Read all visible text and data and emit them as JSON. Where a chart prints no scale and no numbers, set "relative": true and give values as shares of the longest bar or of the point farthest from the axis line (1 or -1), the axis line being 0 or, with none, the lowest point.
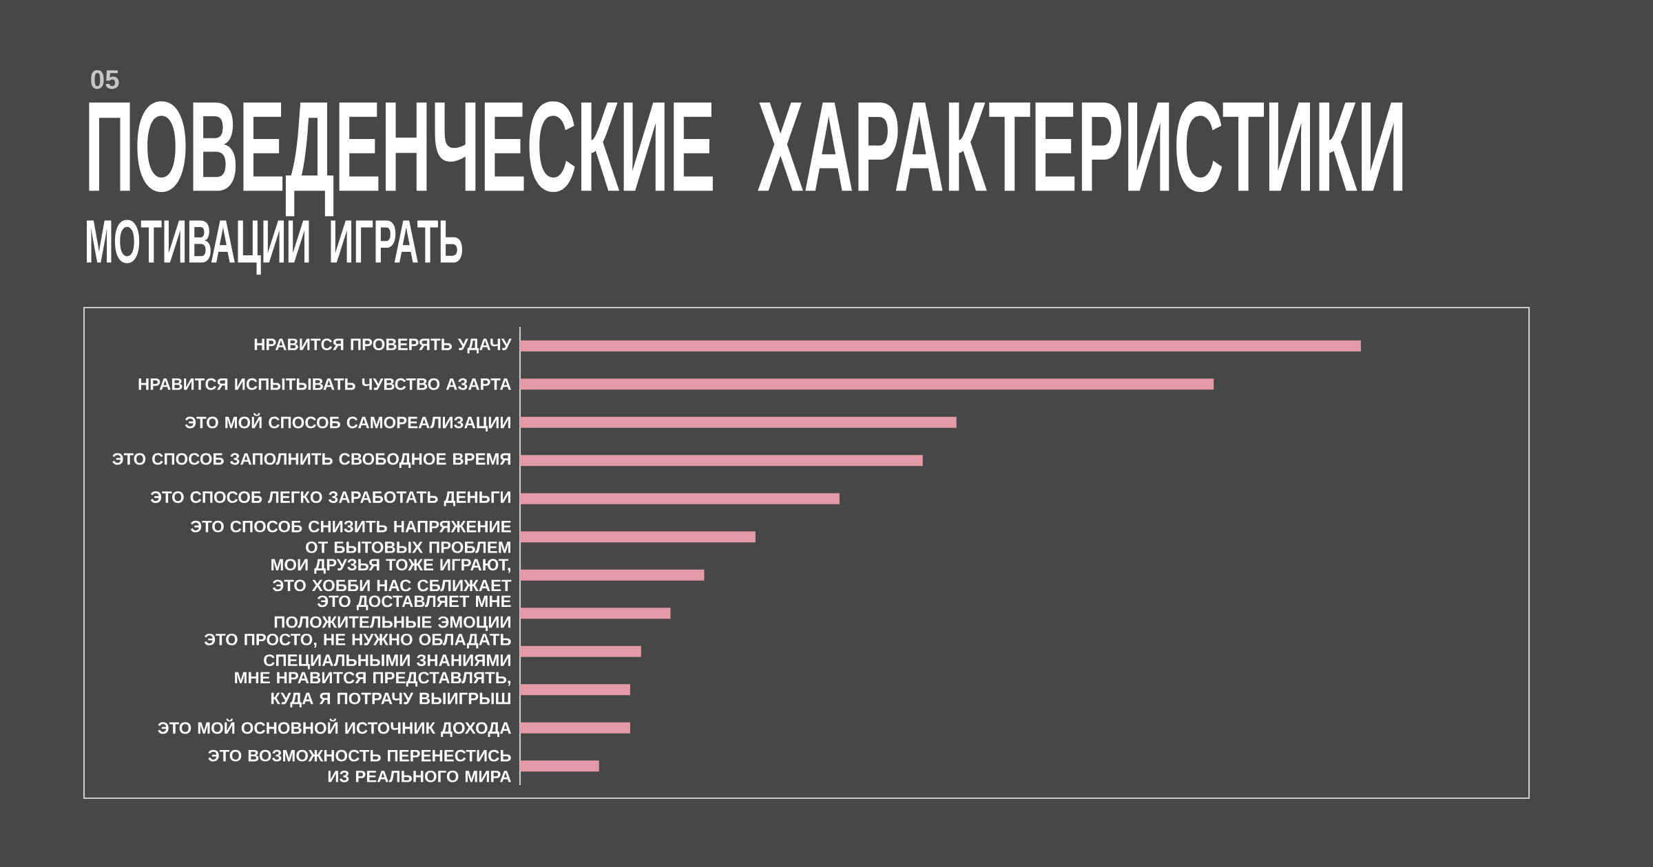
{
  "chart_data": {
    "type": "bar",
    "orientation": "horizontal",
    "relative": true,
    "title": "ПОВЕДЕНЧЕСКИЕ ХАРАКТЕРИСТИКИ",
    "subtitle": "МОТИВАЦИИ ИГРАТЬ",
    "annotations": [
      "05"
    ],
    "categories": [
      "НРАВИТСЯ ПРОВЕРЯТЬ УДАЧУ",
      "НРАВИТСЯ ИСПЫТЫВАТЬ ЧУВСТВО АЗАРТА",
      "ЭТО МОЙ СПОСОБ САМОРЕАЛИЗАЦИИ",
      "ЭТО СПОСОБ ЗАПОЛНИТЬ СВОБОДНОЕ ВРЕМЯ",
      "ЭТО СПОСОБ ЛЕГКО ЗАРАБОТАТЬ ДЕНЬГИ",
      "ЭТО СПОСОБ СНИЗИТЬ НАПРЯЖЕНИЕ ОТ БЫТОВЫХ ПРОБЛЕМ",
      "МОИ ДРУЗЬЯ ТОЖЕ ИГРАЮТ, ЭТО ХОББИ НАС СБЛИЖАЕТ",
      "ЭТО ДОСТАВЛЯЕТ МНЕ ПОЛОЖИТЕЛЬНЫЕ ЭМОЦИИ",
      "ЭТО ПРОСТО, НЕ НУЖНО ОБЛАДАТЬ СПЕЦИАЛЬНЫМИ ЗНАНИЯМИ",
      "МНЕ НРАВИТСЯ ПРЕДСТАВЛЯТЬ, КУДА Я ПОТРАЧУ ВЫИГРЫШ",
      "ЭТО МОЙ ОСНОВНОЙ ИСТОЧНИК ДОХОДА",
      "ЭТО ВОЗМОЖНОСТЬ ПЕРЕНЕСТИСЬ ИЗ РЕАЛЬНОГО МИРА"
    ],
    "values": [
      1,
      0.825,
      0.519,
      0.479,
      0.38,
      0.28,
      0.219,
      0.179,
      0.144,
      0.131,
      0.131,
      0.094
    ],
    "color": "#e39aa6"
  }
}
